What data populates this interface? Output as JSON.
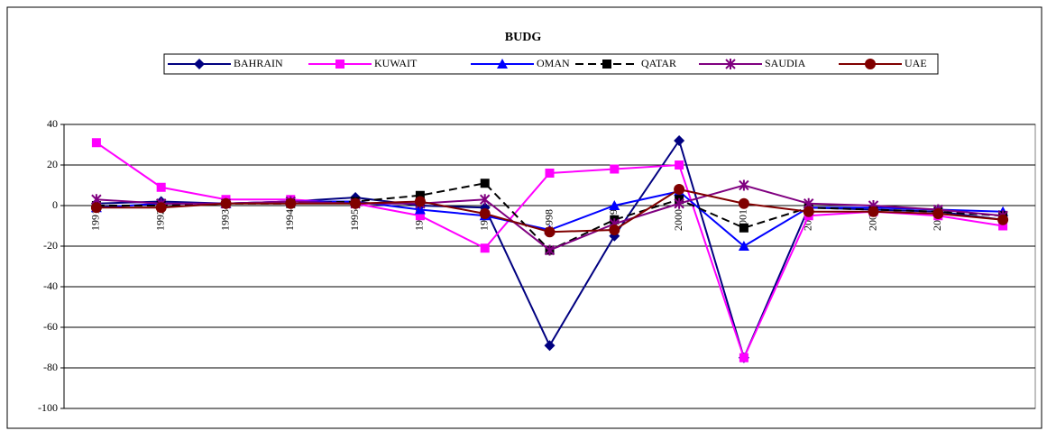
{
  "chart_data": {
    "type": "line",
    "title": "BUDG",
    "categories": [
      "1991",
      "1992",
      "1993",
      "1994",
      "1995",
      "1996",
      "1997",
      "1998",
      "1999",
      "2000",
      "2001",
      "2002",
      "2003",
      "2004",
      "2005"
    ],
    "series": [
      {
        "name": "BAHRAIN",
        "color": "#000080",
        "marker": "diamond",
        "dash": false,
        "values": [
          1,
          2,
          1,
          2,
          4,
          0,
          -1,
          -69,
          -15,
          32,
          -75,
          -1,
          -2,
          -3,
          -7
        ]
      },
      {
        "name": "KUWAIT",
        "color": "#ff00ff",
        "marker": "square",
        "dash": false,
        "values": [
          31,
          9,
          3,
          3,
          1,
          -5,
          -21,
          16,
          18,
          20,
          -75,
          -5,
          -3,
          -5,
          -10
        ]
      },
      {
        "name": "OMAN",
        "color": "#0000ff",
        "marker": "triangle",
        "dash": false,
        "values": [
          -1,
          1,
          1,
          2,
          2,
          -2,
          -5,
          -12,
          0,
          7,
          -20,
          -1,
          -1,
          -2,
          -3
        ]
      },
      {
        "name": "QATAR",
        "color": "#000000",
        "marker": "square",
        "dash": true,
        "values": [
          0,
          0,
          1,
          1,
          2,
          5,
          11,
          -22,
          -7,
          3,
          -11,
          -1,
          -2,
          -3,
          -5
        ]
      },
      {
        "name": "SAUDIA",
        "color": "#800080",
        "marker": "star",
        "dash": false,
        "values": [
          3,
          1,
          1,
          2,
          1,
          1,
          3,
          -22,
          -9,
          1,
          10,
          1,
          0,
          -2,
          -5
        ]
      },
      {
        "name": "UAE",
        "color": "#800000",
        "marker": "circle",
        "dash": false,
        "values": [
          -1,
          -1,
          1,
          1,
          1,
          2,
          -4,
          -13,
          -12,
          8,
          1,
          -3,
          -3,
          -4,
          -7
        ]
      }
    ],
    "ylim": [
      -100,
      40
    ],
    "yticks": [
      -100,
      -80,
      -60,
      -40,
      -20,
      0,
      20,
      40
    ],
    "grid": true,
    "legend": "top"
  }
}
